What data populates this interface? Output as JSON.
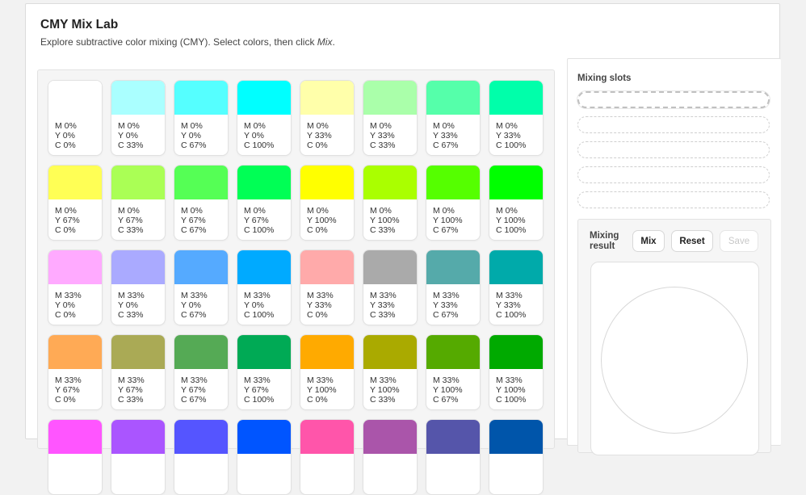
{
  "app": {
    "title": "CMY Mix Lab",
    "subtitle_prefix": "Explore subtractive color mixing (CMY). Select colors, then click ",
    "subtitle_emph": "Mix",
    "subtitle_suffix": "."
  },
  "palette": {
    "swatches": [
      {
        "color": "#ffffff",
        "m": "M 0%",
        "y": "Y 0%",
        "c": "C 0%"
      },
      {
        "color": "#aaffff",
        "m": "M 0%",
        "y": "Y 0%",
        "c": "C 33%"
      },
      {
        "color": "#55ffff",
        "m": "M 0%",
        "y": "Y 0%",
        "c": "C 67%"
      },
      {
        "color": "#00ffff",
        "m": "M 0%",
        "y": "Y 0%",
        "c": "C 100%"
      },
      {
        "color": "#ffffaa",
        "m": "M 0%",
        "y": "Y 33%",
        "c": "C 0%"
      },
      {
        "color": "#aaffaa",
        "m": "M 0%",
        "y": "Y 33%",
        "c": "C 33%"
      },
      {
        "color": "#55ffaa",
        "m": "M 0%",
        "y": "Y 33%",
        "c": "C 67%"
      },
      {
        "color": "#00ffaa",
        "m": "M 0%",
        "y": "Y 33%",
        "c": "C 100%"
      },
      {
        "color": "#ffff55",
        "m": "M 0%",
        "y": "Y 67%",
        "c": "C 0%"
      },
      {
        "color": "#aaff55",
        "m": "M 0%",
        "y": "Y 67%",
        "c": "C 33%"
      },
      {
        "color": "#55ff55",
        "m": "M 0%",
        "y": "Y 67%",
        "c": "C 67%"
      },
      {
        "color": "#00ff55",
        "m": "M 0%",
        "y": "Y 67%",
        "c": "C 100%"
      },
      {
        "color": "#ffff00",
        "m": "M 0%",
        "y": "Y 100%",
        "c": "C 0%"
      },
      {
        "color": "#aaff00",
        "m": "M 0%",
        "y": "Y 100%",
        "c": "C 33%"
      },
      {
        "color": "#55ff00",
        "m": "M 0%",
        "y": "Y 100%",
        "c": "C 67%"
      },
      {
        "color": "#00ff00",
        "m": "M 0%",
        "y": "Y 100%",
        "c": "C 100%"
      },
      {
        "color": "#ffaaff",
        "m": "M 33%",
        "y": "Y 0%",
        "c": "C 0%"
      },
      {
        "color": "#aaaaff",
        "m": "M 33%",
        "y": "Y 0%",
        "c": "C 33%"
      },
      {
        "color": "#55aaff",
        "m": "M 33%",
        "y": "Y 0%",
        "c": "C 67%"
      },
      {
        "color": "#00aaff",
        "m": "M 33%",
        "y": "Y 0%",
        "c": "C 100%"
      },
      {
        "color": "#ffaaaa",
        "m": "M 33%",
        "y": "Y 33%",
        "c": "C 0%"
      },
      {
        "color": "#aaaaaa",
        "m": "M 33%",
        "y": "Y 33%",
        "c": "C 33%"
      },
      {
        "color": "#55aaaa",
        "m": "M 33%",
        "y": "Y 33%",
        "c": "C 67%"
      },
      {
        "color": "#00aaaa",
        "m": "M 33%",
        "y": "Y 33%",
        "c": "C 100%"
      },
      {
        "color": "#ffaa55",
        "m": "M 33%",
        "y": "Y 67%",
        "c": "C 0%"
      },
      {
        "color": "#aaaa55",
        "m": "M 33%",
        "y": "Y 67%",
        "c": "C 33%"
      },
      {
        "color": "#55aa55",
        "m": "M 33%",
        "y": "Y 67%",
        "c": "C 67%"
      },
      {
        "color": "#00aa55",
        "m": "M 33%",
        "y": "Y 67%",
        "c": "C 100%"
      },
      {
        "color": "#ffaa00",
        "m": "M 33%",
        "y": "Y 100%",
        "c": "C 0%"
      },
      {
        "color": "#aaaa00",
        "m": "M 33%",
        "y": "Y 100%",
        "c": "C 33%"
      },
      {
        "color": "#55aa00",
        "m": "M 33%",
        "y": "Y 100%",
        "c": "C 67%"
      },
      {
        "color": "#00aa00",
        "m": "M 33%",
        "y": "Y 100%",
        "c": "C 100%"
      },
      {
        "color": "#ff55ff",
        "m": "",
        "y": "",
        "c": ""
      },
      {
        "color": "#aa55ff",
        "m": "",
        "y": "",
        "c": ""
      },
      {
        "color": "#5555ff",
        "m": "",
        "y": "",
        "c": ""
      },
      {
        "color": "#0055ff",
        "m": "",
        "y": "",
        "c": ""
      },
      {
        "color": "#ff55aa",
        "m": "",
        "y": "",
        "c": ""
      },
      {
        "color": "#aa55aa",
        "m": "",
        "y": "",
        "c": ""
      },
      {
        "color": "#5555aa",
        "m": "",
        "y": "",
        "c": ""
      },
      {
        "color": "#0055aa",
        "m": "",
        "y": "",
        "c": ""
      }
    ]
  },
  "sidebar": {
    "slots_title": "Mixing slots",
    "slots": [
      {
        "active": true
      },
      {
        "active": false
      },
      {
        "active": false
      },
      {
        "active": false
      },
      {
        "active": false
      }
    ],
    "result_label": "Mixing result",
    "mix_label": "Mix",
    "reset_label": "Reset",
    "save_label": "Save",
    "result_color": "#ffffff"
  }
}
